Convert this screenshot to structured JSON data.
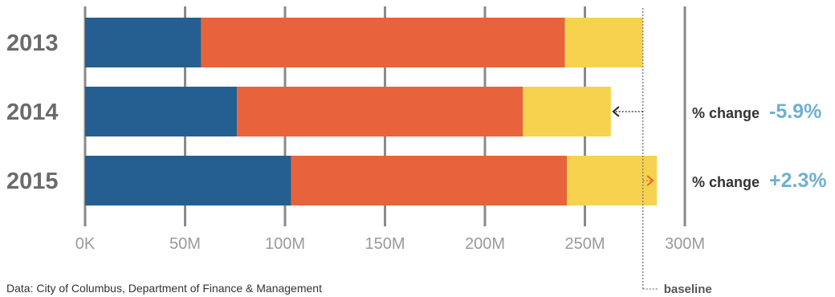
{
  "chart_data": {
    "type": "bar",
    "orientation": "horizontal",
    "stacked": true,
    "categories": [
      "2013",
      "2014",
      "2015"
    ],
    "series": [
      {
        "color": "#255f91",
        "values": [
          58,
          76,
          103
        ]
      },
      {
        "color": "#e8633b",
        "values": [
          182,
          143,
          138
        ]
      },
      {
        "color": "#f6d24e",
        "values": [
          39,
          44,
          45
        ]
      }
    ],
    "xlim": [
      0,
      300
    ],
    "ticks": [
      {
        "value": 0,
        "label": "0K"
      },
      {
        "value": 50,
        "label": "50M"
      },
      {
        "value": 100,
        "label": "100M"
      },
      {
        "value": 150,
        "label": "150M"
      },
      {
        "value": 200,
        "label": "200M"
      },
      {
        "value": 250,
        "label": "250M"
      },
      {
        "value": 300,
        "label": "300M"
      }
    ],
    "grid": true,
    "baseline": {
      "value": 279,
      "label": "baseline"
    },
    "annotations": [
      {
        "category": "2014",
        "label": "% change",
        "value": "-5.9%",
        "direction": "left"
      },
      {
        "category": "2015",
        "label": "% change",
        "value": "+2.3%",
        "direction": "right"
      }
    ],
    "source": "Data: City of Columbus, Department of Finance & Management"
  },
  "colors": {
    "grid": "#8a8a8a",
    "pct_value": "#6fb0cf",
    "arrow_left": "#222222",
    "arrow_right": "#e8633b",
    "baseline": "#777777"
  }
}
